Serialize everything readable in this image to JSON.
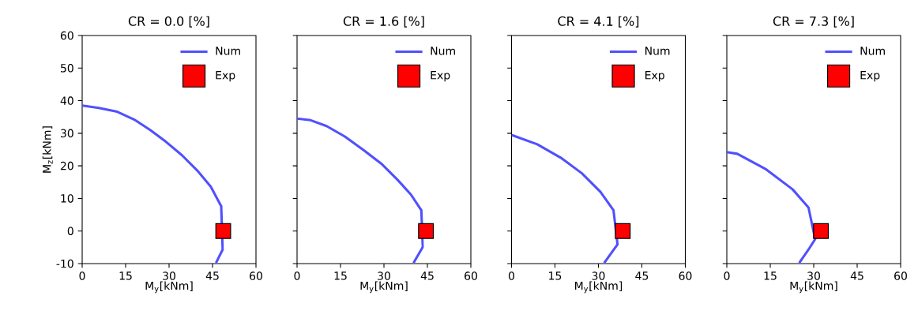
{
  "chart_data": [
    {
      "type": "line",
      "title": "CR = 0.0 [%]",
      "xlabel": "M$_{y}$[kNm]",
      "ylabel": "M$_{z}$[kNm]",
      "xlim": [
        0,
        60
      ],
      "ylim": [
        -10,
        60
      ],
      "xticks": [
        0,
        15,
        30,
        45,
        60
      ],
      "yticks": [
        -10,
        0,
        10,
        20,
        30,
        40,
        50,
        60
      ],
      "legend": "top right",
      "grid": false,
      "series": [
        {
          "name": "Num",
          "color": "#5050ff",
          "line_style": "solid",
          "x": [
            0,
            5.7,
            12.1,
            18,
            23.5,
            28.9,
            34.4,
            39.8,
            44.4,
            48,
            48.5,
            46.2
          ],
          "values": [
            38.5,
            37.8,
            36.6,
            34.2,
            31,
            27.4,
            23.3,
            18.5,
            13.6,
            7.6,
            -5.7,
            -9.8
          ]
        },
        {
          "name": "Exp",
          "type": "scatter",
          "color": "#ff0000",
          "marker": "square",
          "x": [
            48.7
          ],
          "values": [
            0
          ]
        }
      ]
    },
    {
      "type": "line",
      "title": "CR = 1.6 [%]",
      "xlabel": "M$_{y}$[kNm]",
      "xlim": [
        0,
        60
      ],
      "ylim": [
        -10,
        60
      ],
      "xticks": [
        0,
        15,
        30,
        45,
        60
      ],
      "yticks": [
        -10,
        0,
        10,
        20,
        30,
        40,
        50,
        60
      ],
      "tick_labels": "x",
      "legend": "top right",
      "grid": false,
      "series": [
        {
          "name": "Num",
          "color": "#5050ff",
          "line_style": "solid",
          "x": [
            0,
            4.7,
            10.2,
            16.5,
            22.9,
            29.3,
            34.7,
            39.3,
            42.9,
            43.4,
            40.2
          ],
          "values": [
            34.5,
            34.0,
            32.2,
            29,
            24.9,
            20.5,
            15.7,
            11.2,
            6.4,
            -4.9,
            -9.8
          ]
        },
        {
          "name": "Exp",
          "type": "scatter",
          "color": "#ff0000",
          "marker": "square",
          "x": [
            44.5
          ],
          "values": [
            0
          ]
        }
      ]
    },
    {
      "type": "line",
      "title": "CR = 4.1 [%]",
      "xlabel": "M$_{y}$[kNm]",
      "xlim": [
        0,
        60
      ],
      "ylim": [
        -10,
        60
      ],
      "xticks": [
        0,
        15,
        30,
        45,
        60
      ],
      "yticks": [
        -10,
        0,
        10,
        20,
        30,
        40,
        50,
        60
      ],
      "tick_labels": "x",
      "legend": "top right",
      "grid": false,
      "series": [
        {
          "name": "Num",
          "color": "#5050ff",
          "line_style": "solid",
          "x": [
            0,
            8.9,
            17,
            24.3,
            30.7,
            35.2,
            36.6,
            32
          ],
          "values": [
            29.5,
            26.6,
            22.5,
            17.7,
            12,
            6.4,
            -4.1,
            -9.8
          ]
        },
        {
          "name": "Exp",
          "type": "scatter",
          "color": "#ff0000",
          "marker": "square",
          "x": [
            38.4
          ],
          "values": [
            0
          ]
        }
      ]
    },
    {
      "type": "line",
      "title": "CR = 7.3 [%]",
      "xlabel": "M$_{y}$[kNm]",
      "xlim": [
        0,
        60
      ],
      "ylim": [
        -10,
        60
      ],
      "xticks": [
        0,
        15,
        30,
        45,
        60
      ],
      "yticks": [
        -10,
        0,
        10,
        20,
        30,
        40,
        50,
        60
      ],
      "tick_labels": "x",
      "legend": "top right",
      "grid": false,
      "series": [
        {
          "name": "Num",
          "color": "#5050ff",
          "line_style": "solid",
          "x": [
            0,
            3.6,
            13.6,
            22.7,
            28.2,
            30.5,
            28.2,
            25
          ],
          "values": [
            24.2,
            23.7,
            18.9,
            12.8,
            7.2,
            -2.5,
            -5.7,
            -9.8
          ]
        },
        {
          "name": "Exp",
          "type": "scatter",
          "color": "#ff0000",
          "marker": "square",
          "x": [
            32.5
          ],
          "values": [
            0
          ]
        }
      ]
    }
  ]
}
